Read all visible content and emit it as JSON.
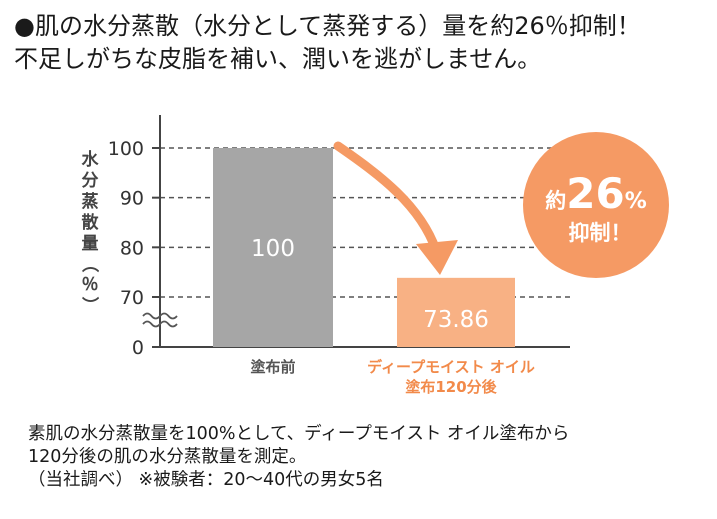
{
  "headline": {
    "line1": "●肌の水分蒸散（水分として蒸発する）量を約26％抑制！",
    "line2": "不足しがちな皮脂を補い、潤いを逃がしません。"
  },
  "chart_data": {
    "type": "bar",
    "ylabel": "水分蒸散量（％）",
    "yticks": [
      "0",
      "70",
      "80",
      "90",
      "100"
    ],
    "ylim": [
      70,
      100
    ],
    "axis_break": true,
    "grid": "dashed",
    "categories": [
      [
        "塗布前"
      ],
      [
        "ディープモイスト オイル",
        "塗布120分後"
      ]
    ],
    "values": [
      100,
      73.86
    ],
    "value_labels": [
      "100",
      "73.86"
    ],
    "colors": [
      "#a6a6a6",
      "#f8b184"
    ],
    "label_colors": [
      "#555555",
      "#f28a4a"
    ],
    "badge": {
      "line1_prefix": "約",
      "line1_number": "26",
      "line1_unit": "%",
      "line2": "抑制！",
      "color": "#f59a64"
    },
    "arrow_color": "#f59a64"
  },
  "footnote": {
    "line1": "素肌の水分蒸散量を100%として、ディープモイスト オイル塗布から",
    "line2": "120分後の肌の水分蒸散量を測定。",
    "line3": "（当社調べ） ※被験者：20〜40代の男女5名"
  }
}
